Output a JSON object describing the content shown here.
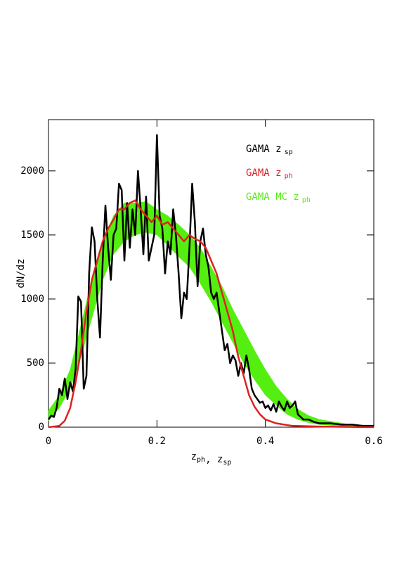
{
  "chart_data": {
    "type": "line",
    "y_label": "dN/dz",
    "x_label": [
      {
        "text": "z",
        "sub": "ph"
      },
      {
        "text": ", z",
        "sub": "sp"
      }
    ],
    "xlim": [
      0,
      0.6
    ],
    "xticks": [
      0,
      0.2,
      0.4,
      0.6
    ],
    "ylim": [
      0,
      2400
    ],
    "yticks": [
      0,
      500,
      1000,
      1500,
      2000
    ],
    "legend": "upper right",
    "series": [
      {
        "name": "GAMA z",
        "name_sub": "sp",
        "color": "#000000",
        "style": "line",
        "x": [
          0,
          0.005,
          0.01,
          0.015,
          0.02,
          0.025,
          0.03,
          0.035,
          0.04,
          0.045,
          0.05,
          0.055,
          0.06,
          0.065,
          0.07,
          0.075,
          0.08,
          0.085,
          0.09,
          0.095,
          0.1,
          0.105,
          0.11,
          0.115,
          0.12,
          0.125,
          0.13,
          0.135,
          0.14,
          0.145,
          0.15,
          0.155,
          0.16,
          0.165,
          0.17,
          0.175,
          0.18,
          0.185,
          0.19,
          0.195,
          0.2,
          0.205,
          0.21,
          0.215,
          0.22,
          0.225,
          0.23,
          0.235,
          0.24,
          0.245,
          0.25,
          0.255,
          0.26,
          0.265,
          0.27,
          0.275,
          0.28,
          0.285,
          0.29,
          0.295,
          0.3,
          0.305,
          0.31,
          0.315,
          0.32,
          0.325,
          0.33,
          0.335,
          0.34,
          0.345,
          0.35,
          0.355,
          0.36,
          0.365,
          0.37,
          0.375,
          0.38,
          0.385,
          0.39,
          0.395,
          0.4,
          0.405,
          0.41,
          0.415,
          0.42,
          0.425,
          0.43,
          0.435,
          0.44,
          0.445,
          0.45,
          0.455,
          0.46,
          0.465,
          0.47,
          0.48,
          0.49,
          0.5,
          0.52,
          0.54,
          0.56,
          0.58,
          0.6
        ],
        "values": [
          60,
          90,
          80,
          150,
          300,
          250,
          380,
          220,
          350,
          280,
          450,
          1020,
          980,
          300,
          400,
          1200,
          1560,
          1450,
          1000,
          700,
          1300,
          1730,
          1400,
          1150,
          1500,
          1550,
          1900,
          1850,
          1300,
          1750,
          1400,
          1700,
          1500,
          2000,
          1700,
          1350,
          1800,
          1300,
          1400,
          1500,
          2280,
          1650,
          1550,
          1200,
          1450,
          1350,
          1700,
          1500,
          1200,
          850,
          1050,
          1000,
          1400,
          1900,
          1600,
          1100,
          1450,
          1550,
          1350,
          1250,
          1050,
          1000,
          1050,
          900,
          750,
          600,
          650,
          500,
          560,
          520,
          400,
          500,
          420,
          560,
          450,
          300,
          250,
          220,
          190,
          200,
          150,
          170,
          130,
          180,
          120,
          200,
          160,
          130,
          200,
          150,
          170,
          200,
          100,
          80,
          60,
          60,
          40,
          30,
          30,
          20,
          20,
          10,
          10
        ]
      },
      {
        "name": "GAMA z",
        "name_sub": "ph",
        "color": "#dd2222",
        "style": "line",
        "x": [
          0,
          0.02,
          0.03,
          0.04,
          0.05,
          0.06,
          0.07,
          0.08,
          0.09,
          0.1,
          0.11,
          0.12,
          0.13,
          0.14,
          0.15,
          0.16,
          0.17,
          0.18,
          0.19,
          0.2,
          0.21,
          0.22,
          0.23,
          0.24,
          0.25,
          0.26,
          0.27,
          0.28,
          0.29,
          0.3,
          0.31,
          0.32,
          0.33,
          0.34,
          0.35,
          0.36,
          0.37,
          0.38,
          0.39,
          0.4,
          0.42,
          0.45,
          0.5,
          0.6
        ],
        "values": [
          0,
          10,
          50,
          150,
          350,
          600,
          900,
          1150,
          1300,
          1450,
          1550,
          1620,
          1700,
          1700,
          1750,
          1770,
          1700,
          1650,
          1600,
          1650,
          1580,
          1600,
          1550,
          1500,
          1450,
          1500,
          1470,
          1450,
          1400,
          1300,
          1200,
          1050,
          900,
          750,
          550,
          400,
          250,
          160,
          100,
          60,
          30,
          10,
          5,
          0
        ]
      },
      {
        "name": "GAMA MC z",
        "name_sub": "ph",
        "color": "#55ee11",
        "style": "band",
        "x": [
          0,
          0.02,
          0.04,
          0.06,
          0.08,
          0.1,
          0.12,
          0.14,
          0.16,
          0.18,
          0.2,
          0.22,
          0.24,
          0.26,
          0.28,
          0.3,
          0.32,
          0.34,
          0.36,
          0.38,
          0.4,
          0.42,
          0.44,
          0.46,
          0.48,
          0.5,
          0.55,
          0.6
        ],
        "low": [
          50,
          150,
          300,
          550,
          850,
          1150,
          1350,
          1450,
          1500,
          1520,
          1500,
          1420,
          1330,
          1250,
          1120,
          980,
          820,
          660,
          500,
          370,
          250,
          170,
          100,
          60,
          35,
          20,
          5,
          0
        ],
        "high": [
          130,
          250,
          450,
          800,
          1150,
          1450,
          1650,
          1750,
          1750,
          1760,
          1700,
          1650,
          1580,
          1500,
          1400,
          1250,
          1100,
          920,
          760,
          600,
          450,
          320,
          220,
          140,
          90,
          60,
          25,
          10
        ]
      }
    ]
  }
}
